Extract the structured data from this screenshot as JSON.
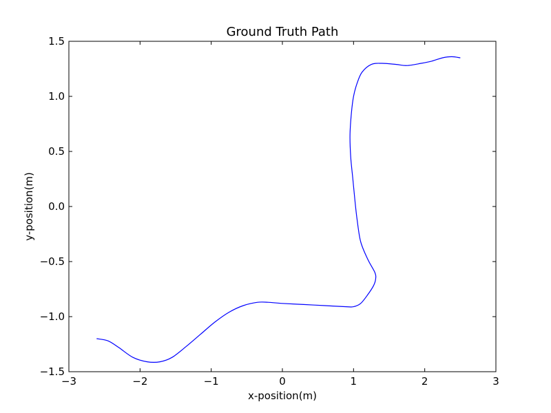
{
  "chart_data": {
    "type": "line",
    "title": "Ground Truth Path",
    "xlabel": "x-position(m)",
    "ylabel": "y-position(m)",
    "xlim": [
      -3,
      3
    ],
    "ylim": [
      -1.5,
      1.5
    ],
    "grid": false,
    "x_ticks": [
      -3,
      -2,
      -1,
      0,
      1,
      2,
      3
    ],
    "x_tick_labels": [
      "−3",
      "−2",
      "−1",
      "0",
      "1",
      "2",
      "3"
    ],
    "y_ticks": [
      -1.5,
      -1.0,
      -0.5,
      0.0,
      0.5,
      1.0,
      1.5
    ],
    "y_tick_labels": [
      "−1.5",
      "−1.0",
      "−0.5",
      "0.0",
      "0.5",
      "1.0",
      "1.5"
    ],
    "series": [
      {
        "color": "#0000ff",
        "x": [
          -2.61,
          -2.45,
          -2.3,
          -2.1,
          -1.9,
          -1.72,
          -1.55,
          -1.35,
          -1.15,
          -0.95,
          -0.75,
          -0.55,
          -0.35,
          -0.2,
          0.0,
          0.3,
          0.6,
          0.9,
          1.0,
          1.1,
          1.2,
          1.28,
          1.31,
          1.3,
          1.2,
          1.1,
          1.05,
          1.02,
          0.99,
          0.96,
          0.95,
          0.97,
          1.0,
          1.05,
          1.12,
          1.25,
          1.4,
          1.6,
          1.75,
          1.95,
          2.1,
          2.25,
          2.38,
          2.5
        ],
        "y": [
          -1.2,
          -1.22,
          -1.28,
          -1.37,
          -1.41,
          -1.41,
          -1.37,
          -1.27,
          -1.16,
          -1.05,
          -0.96,
          -0.9,
          -0.87,
          -0.87,
          -0.88,
          -0.89,
          -0.9,
          -0.91,
          -0.91,
          -0.88,
          -0.8,
          -0.72,
          -0.66,
          -0.6,
          -0.48,
          -0.32,
          -0.12,
          0.05,
          0.25,
          0.45,
          0.65,
          0.85,
          1.0,
          1.12,
          1.22,
          1.29,
          1.3,
          1.29,
          1.28,
          1.3,
          1.32,
          1.35,
          1.36,
          1.35
        ]
      }
    ]
  }
}
